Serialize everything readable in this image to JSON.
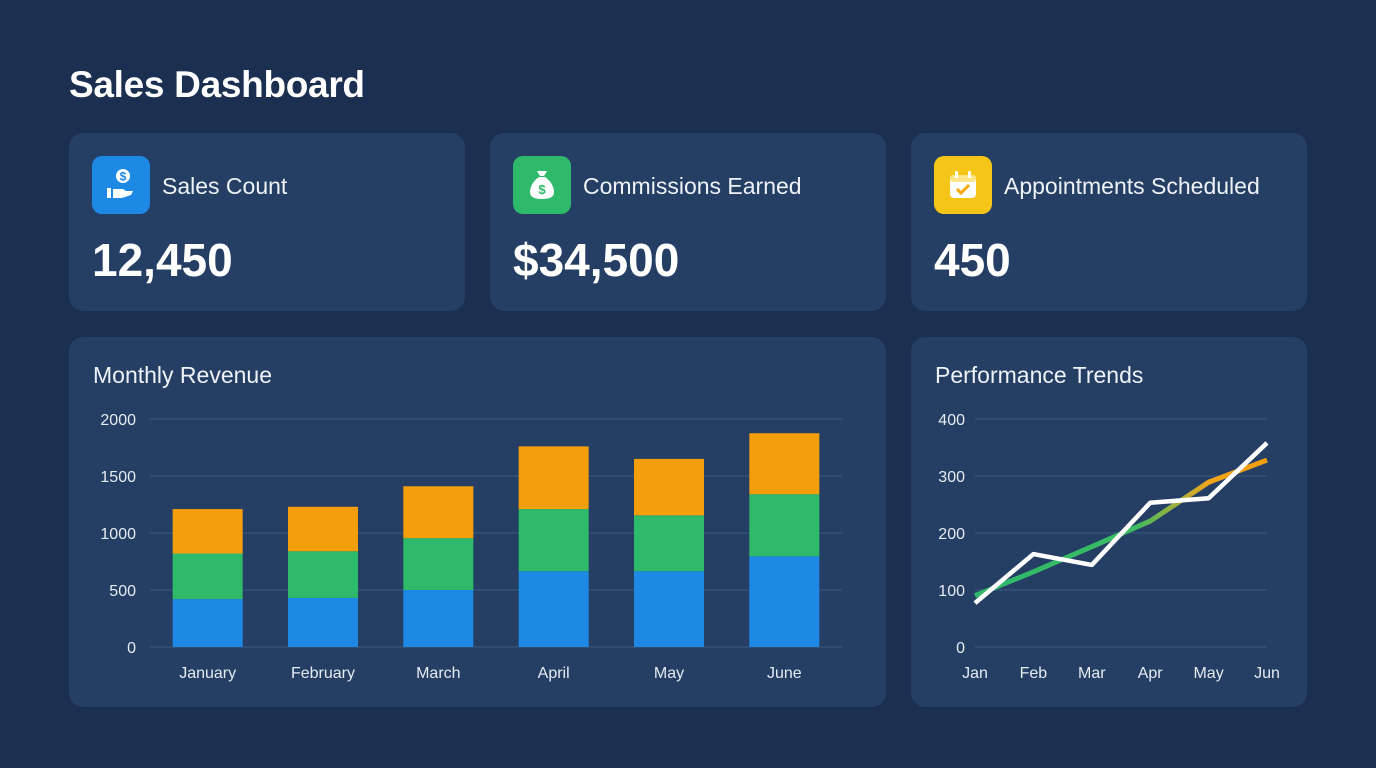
{
  "header": {
    "title": "Sales Dashboard"
  },
  "kpis": [
    {
      "label": "Sales Count",
      "value": "12,450",
      "icon": "hand-coin-icon",
      "color": "#1e88e5"
    },
    {
      "label": "Commissions Earned",
      "value": "$34,500",
      "icon": "money-bag-icon",
      "color": "#2fb96a"
    },
    {
      "label": "Appointments Scheduled",
      "value": "450",
      "icon": "calendar-check-icon",
      "color": "#f5c518"
    }
  ],
  "colors": {
    "background": "#1b2f50",
    "card": "#243f63",
    "blue": "#1e88e5",
    "green": "#2fb96a",
    "orange": "#f59e0b"
  },
  "chart_data": [
    {
      "type": "bar",
      "stacked": true,
      "title": "Monthly Revenue",
      "categories": [
        "January",
        "February",
        "March",
        "April",
        "May",
        "June"
      ],
      "ylim": [
        0,
        2000
      ],
      "yticks": [
        0,
        500,
        1000,
        1500,
        2000
      ],
      "grid": true,
      "series": [
        {
          "color": "#1e88e5",
          "values": [
            420,
            430,
            500,
            665,
            665,
            795
          ]
        },
        {
          "color": "#2fb96a",
          "values": [
            400,
            410,
            455,
            545,
            490,
            545
          ]
        },
        {
          "color": "#f59e0b",
          "values": [
            390,
            390,
            455,
            550,
            495,
            535
          ]
        }
      ]
    },
    {
      "type": "line",
      "title": "Performance Trends",
      "categories": [
        "Jan",
        "Feb",
        "Mar",
        "Apr",
        "May",
        "Jun"
      ],
      "ylim": [
        0,
        400
      ],
      "yticks": [
        0,
        100,
        200,
        300,
        400
      ],
      "grid": true,
      "series": [
        {
          "color": "gradient #2fb96a→#f59e0b",
          "values": [
            90,
            132,
            176,
            221,
            289,
            328
          ]
        },
        {
          "color": "#ffffff",
          "values": [
            77,
            163,
            144,
            253,
            261,
            358
          ]
        }
      ]
    }
  ]
}
